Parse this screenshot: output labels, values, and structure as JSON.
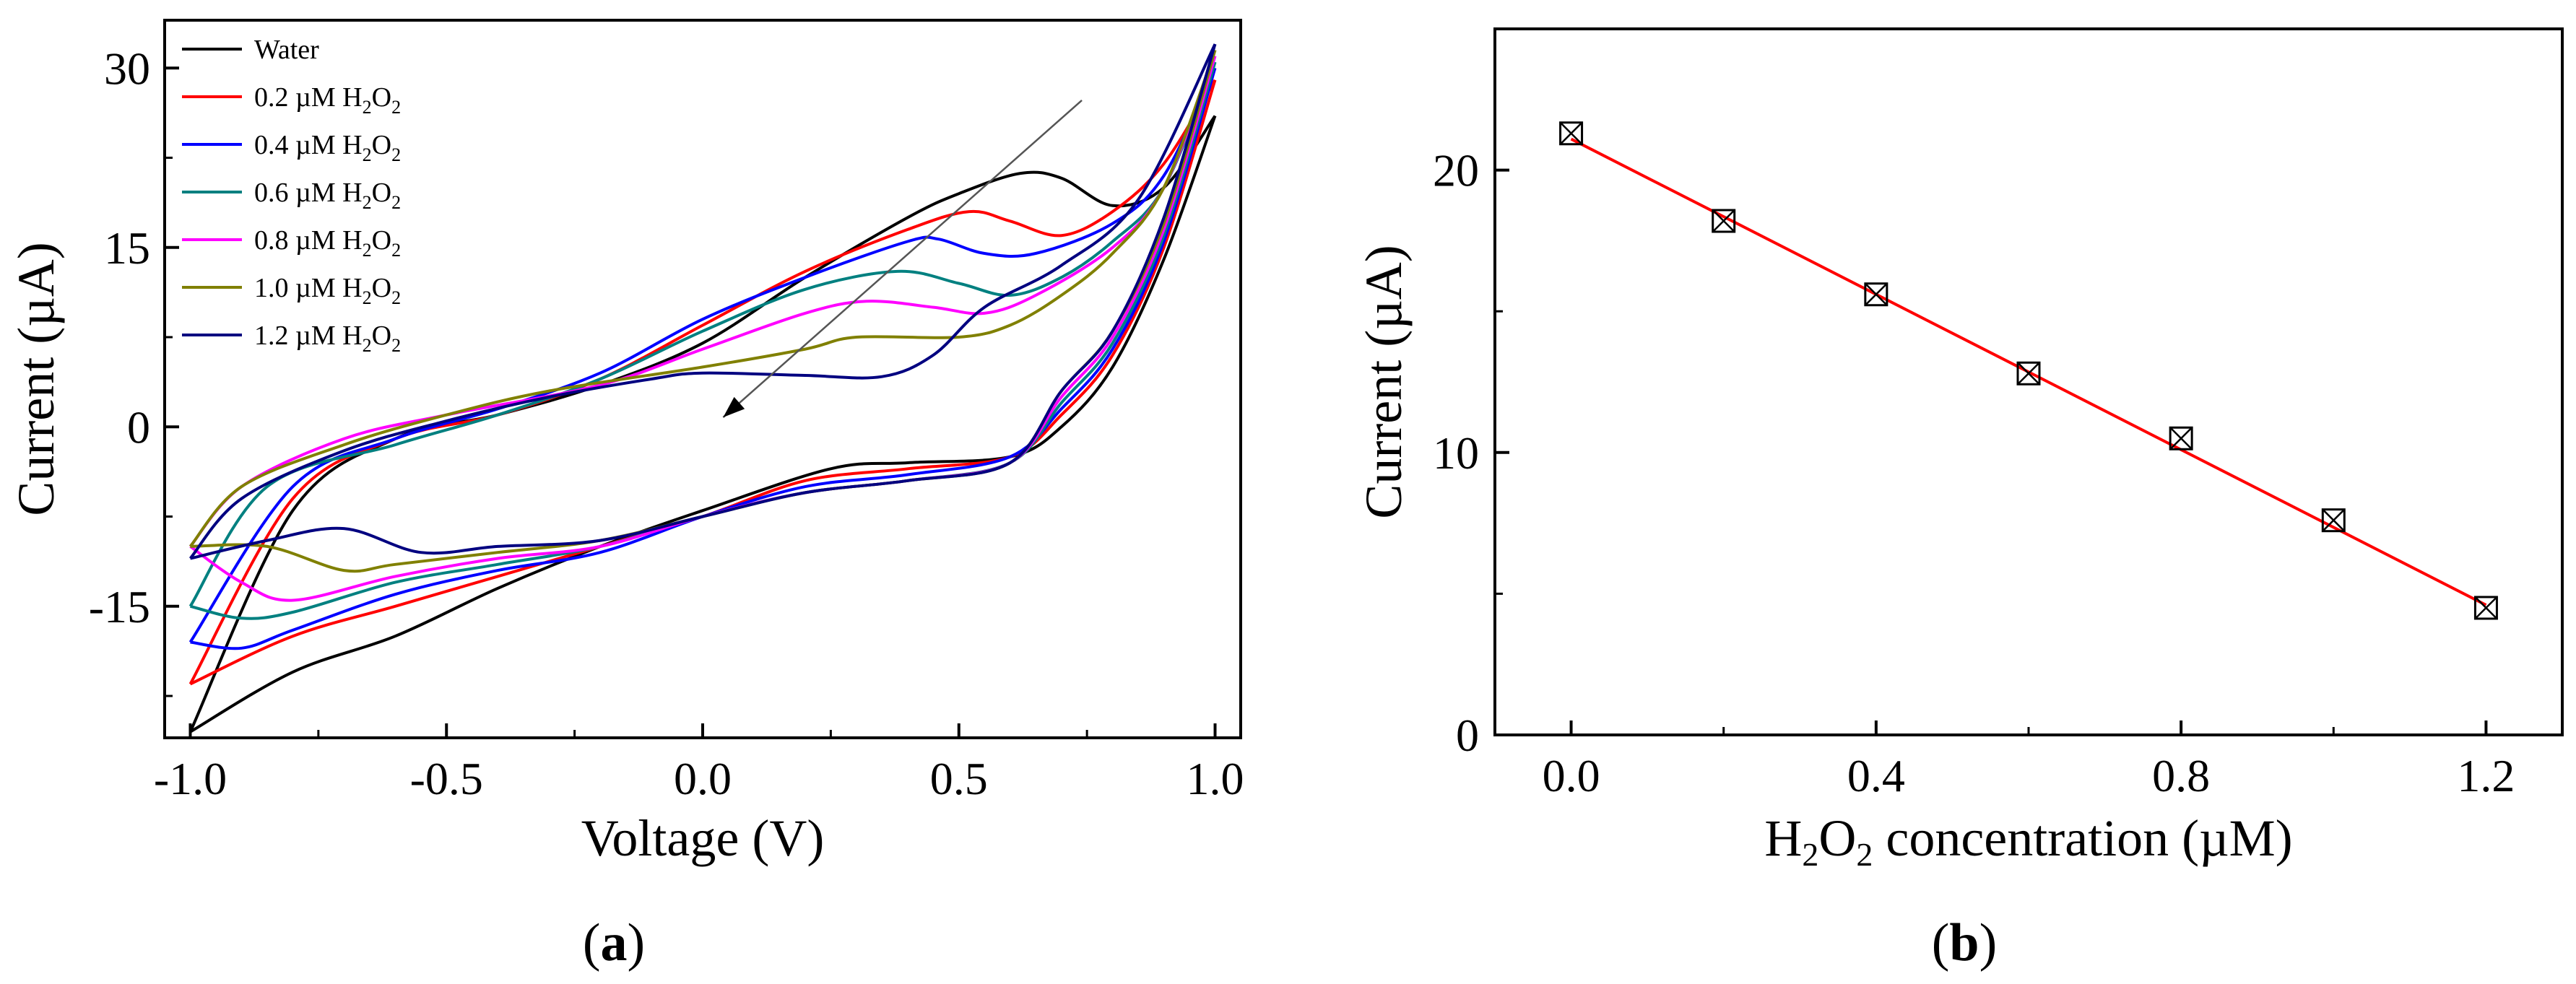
{
  "panels": [
    {
      "label_open": "(",
      "label": "a",
      "label_close": ")"
    },
    {
      "label_open": "(",
      "label": "b",
      "label_close": ")"
    }
  ],
  "chart_data": [
    {
      "type": "line",
      "title": "",
      "xlabel": "Voltage (V)",
      "ylabel": "Current (µA)",
      "xlim": [
        -1.05,
        1.05
      ],
      "ylim": [
        -26,
        34
      ],
      "xticks": [
        -1.0,
        -0.5,
        0.0,
        0.5,
        1.0
      ],
      "xtick_labels": [
        "-1.0",
        "-0.5",
        "0.0",
        "0.5",
        "1.0"
      ],
      "yticks": [
        -15,
        0,
        15,
        30
      ],
      "ytick_labels": [
        "-15",
        "0",
        "15",
        "30"
      ],
      "legend_position": "top-left",
      "arrow": {
        "from": [
          0.74,
          27.3
        ],
        "to": [
          0.04,
          0.8
        ]
      },
      "series": [
        {
          "name": "Water",
          "name_parts": {
            "text": "Water"
          },
          "color": "#000000",
          "forward": [
            [
              -1.0,
              -25.5
            ],
            [
              -0.8,
              -7
            ],
            [
              -0.6,
              -1
            ],
            [
              -0.4,
              1
            ],
            [
              -0.2,
              3.5
            ],
            [
              0.0,
              7
            ],
            [
              0.2,
              12.5
            ],
            [
              0.4,
              17.5
            ],
            [
              0.5,
              19.5
            ],
            [
              0.62,
              21.2
            ],
            [
              0.7,
              20.8
            ],
            [
              0.8,
              18.5
            ],
            [
              0.9,
              20
            ],
            [
              1.0,
              26
            ]
          ],
          "reverse": [
            [
              1.0,
              26
            ],
            [
              0.9,
              14
            ],
            [
              0.8,
              5
            ],
            [
              0.7,
              0
            ],
            [
              0.6,
              -2.5
            ],
            [
              0.4,
              -3
            ],
            [
              0.25,
              -3.5
            ],
            [
              0.0,
              -7
            ],
            [
              -0.2,
              -10
            ],
            [
              -0.4,
              -13.5
            ],
            [
              -0.6,
              -17.5
            ],
            [
              -0.8,
              -20.5
            ],
            [
              -1.0,
              -25.5
            ]
          ]
        },
        {
          "name": "0.2 µM H2O2",
          "name_parts": {
            "text": "0.2 µM H",
            "sub1": "2",
            "mid": "O",
            "sub2": "2"
          },
          "color": "#ff0000",
          "forward": [
            [
              -1.0,
              -21.5
            ],
            [
              -0.8,
              -6
            ],
            [
              -0.6,
              -1
            ],
            [
              -0.4,
              1
            ],
            [
              -0.2,
              4
            ],
            [
              0.0,
              8.5
            ],
            [
              0.2,
              13
            ],
            [
              0.4,
              16.5
            ],
            [
              0.52,
              18
            ],
            [
              0.6,
              17.2
            ],
            [
              0.7,
              16
            ],
            [
              0.8,
              18
            ],
            [
              0.9,
              22
            ],
            [
              1.0,
              29
            ]
          ],
          "reverse": [
            [
              1.0,
              29
            ],
            [
              0.9,
              15
            ],
            [
              0.8,
              6
            ],
            [
              0.7,
              1
            ],
            [
              0.6,
              -2.5
            ],
            [
              0.4,
              -3.5
            ],
            [
              0.2,
              -4.5
            ],
            [
              0.0,
              -7.5
            ],
            [
              -0.2,
              -10
            ],
            [
              -0.4,
              -12.5
            ],
            [
              -0.6,
              -15
            ],
            [
              -0.8,
              -17.5
            ],
            [
              -1.0,
              -21.5
            ]
          ]
        },
        {
          "name": "0.4 µM H2O2",
          "name_parts": {
            "text": "0.4 µM H",
            "sub1": "2",
            "mid": "O",
            "sub2": "2"
          },
          "color": "#0000ff",
          "forward": [
            [
              -1.0,
              -18
            ],
            [
              -0.8,
              -5
            ],
            [
              -0.6,
              -1
            ],
            [
              -0.4,
              1.5
            ],
            [
              -0.2,
              4.5
            ],
            [
              0.0,
              9
            ],
            [
              0.2,
              12.5
            ],
            [
              0.4,
              15.5
            ],
            [
              0.46,
              15.7
            ],
            [
              0.55,
              14.5
            ],
            [
              0.65,
              14.5
            ],
            [
              0.8,
              17
            ],
            [
              0.9,
              21
            ],
            [
              1.0,
              30
            ]
          ],
          "reverse": [
            [
              1.0,
              30
            ],
            [
              0.9,
              15.5
            ],
            [
              0.8,
              6.5
            ],
            [
              0.7,
              1.5
            ],
            [
              0.6,
              -2.5
            ],
            [
              0.4,
              -4
            ],
            [
              0.2,
              -5
            ],
            [
              0.0,
              -7.5
            ],
            [
              -0.2,
              -10.5
            ],
            [
              -0.4,
              -12
            ],
            [
              -0.6,
              -14
            ],
            [
              -0.8,
              -17
            ],
            [
              -0.9,
              -18.5
            ],
            [
              -1.0,
              -18
            ]
          ]
        },
        {
          "name": "0.6 µM H2O2",
          "name_parts": {
            "text": "0.6 µM H",
            "sub1": "2",
            "mid": "O",
            "sub2": "2"
          },
          "color": "#008080",
          "forward": [
            [
              -1.0,
              -15
            ],
            [
              -0.85,
              -5
            ],
            [
              -0.6,
              -1.5
            ],
            [
              -0.4,
              1
            ],
            [
              -0.2,
              4
            ],
            [
              0.0,
              8
            ],
            [
              0.2,
              11.5
            ],
            [
              0.38,
              13
            ],
            [
              0.5,
              12
            ],
            [
              0.6,
              11
            ],
            [
              0.7,
              12.5
            ],
            [
              0.8,
              15.5
            ],
            [
              0.9,
              20
            ],
            [
              1.0,
              30.5
            ]
          ],
          "reverse": [
            [
              1.0,
              30.5
            ],
            [
              0.9,
              16
            ],
            [
              0.8,
              7
            ],
            [
              0.7,
              2
            ],
            [
              0.6,
              -3
            ],
            [
              0.4,
              -4.5
            ],
            [
              0.2,
              -5.5
            ],
            [
              0.0,
              -7.5
            ],
            [
              -0.2,
              -10
            ],
            [
              -0.4,
              -11.5
            ],
            [
              -0.6,
              -13
            ],
            [
              -0.8,
              -15.5
            ],
            [
              -0.9,
              -16
            ],
            [
              -1.0,
              -15
            ]
          ]
        },
        {
          "name": "0.8 µM H2O2",
          "name_parts": {
            "text": "0.8 µM H",
            "sub1": "2",
            "mid": "O",
            "sub2": "2"
          },
          "color": "#ff00ff",
          "forward": [
            [
              -1.0,
              -10
            ],
            [
              -0.9,
              -5
            ],
            [
              -0.7,
              -1
            ],
            [
              -0.5,
              1
            ],
            [
              -0.2,
              3.5
            ],
            [
              0.0,
              6.5
            ],
            [
              0.2,
              9.5
            ],
            [
              0.32,
              10.5
            ],
            [
              0.45,
              10
            ],
            [
              0.55,
              9.5
            ],
            [
              0.65,
              11
            ],
            [
              0.8,
              15
            ],
            [
              0.9,
              20
            ],
            [
              1.0,
              31
            ]
          ],
          "reverse": [
            [
              1.0,
              31
            ],
            [
              0.9,
              16.5
            ],
            [
              0.8,
              7.5
            ],
            [
              0.7,
              2.5
            ],
            [
              0.6,
              -3
            ],
            [
              0.4,
              -4.5
            ],
            [
              0.2,
              -5.5
            ],
            [
              0.0,
              -7.5
            ],
            [
              -0.2,
              -10
            ],
            [
              -0.4,
              -11
            ],
            [
              -0.6,
              -12.5
            ],
            [
              -0.8,
              -14.5
            ],
            [
              -0.9,
              -13
            ],
            [
              -1.0,
              -10
            ]
          ]
        },
        {
          "name": "1.0 µM H2O2",
          "name_parts": {
            "text": "1.0 µM H",
            "sub1": "2",
            "mid": "O",
            "sub2": "2"
          },
          "color": "#808000",
          "forward": [
            [
              -1.0,
              -10
            ],
            [
              -0.9,
              -5
            ],
            [
              -0.7,
              -1.5
            ],
            [
              -0.5,
              1
            ],
            [
              -0.3,
              3
            ],
            [
              0.0,
              5
            ],
            [
              0.2,
              6.5
            ],
            [
              0.3,
              7.5
            ],
            [
              0.5,
              7.5
            ],
            [
              0.6,
              8.5
            ],
            [
              0.7,
              11
            ],
            [
              0.8,
              14.5
            ],
            [
              0.9,
              20
            ],
            [
              1.0,
              31.5
            ]
          ],
          "reverse": [
            [
              1.0,
              31.5
            ],
            [
              0.9,
              17
            ],
            [
              0.8,
              8
            ],
            [
              0.7,
              3
            ],
            [
              0.6,
              -3
            ],
            [
              0.4,
              -4.5
            ],
            [
              0.2,
              -5.5
            ],
            [
              0.0,
              -7.5
            ],
            [
              -0.2,
              -9.5
            ],
            [
              -0.4,
              -10.5
            ],
            [
              -0.6,
              -11.5
            ],
            [
              -0.7,
              -12
            ],
            [
              -0.85,
              -10
            ],
            [
              -1.0,
              -10
            ]
          ]
        },
        {
          "name": "1.2 µM H2O2",
          "name_parts": {
            "text": "1.2 µM H",
            "sub1": "2",
            "mid": "O",
            "sub2": "2"
          },
          "color": "#000080",
          "forward": [
            [
              -1.0,
              -11
            ],
            [
              -0.9,
              -6
            ],
            [
              -0.7,
              -2
            ],
            [
              -0.5,
              0.5
            ],
            [
              -0.3,
              2.5
            ],
            [
              -0.1,
              4
            ],
            [
              0.0,
              4.5
            ],
            [
              0.2,
              4.3
            ],
            [
              0.35,
              4.2
            ],
            [
              0.45,
              6
            ],
            [
              0.55,
              10
            ],
            [
              0.7,
              13.5
            ],
            [
              0.85,
              19
            ],
            [
              1.0,
              32
            ]
          ],
          "reverse": [
            [
              1.0,
              32
            ],
            [
              0.9,
              17.5
            ],
            [
              0.8,
              8
            ],
            [
              0.7,
              3
            ],
            [
              0.6,
              -3
            ],
            [
              0.4,
              -4.5
            ],
            [
              0.2,
              -5.5
            ],
            [
              0.0,
              -7.5
            ],
            [
              -0.2,
              -9.5
            ],
            [
              -0.4,
              -10
            ],
            [
              -0.55,
              -10.5
            ],
            [
              -0.7,
              -8.5
            ],
            [
              -0.85,
              -9.5
            ],
            [
              -1.0,
              -11
            ]
          ]
        }
      ]
    },
    {
      "type": "scatter",
      "title": "",
      "xlabel": "H2O2 concentration (µM)",
      "xlabel_parts": {
        "text": "H",
        "sub1": "2",
        "mid": "O",
        "sub2": "2",
        "rest": " concentration (µM)"
      },
      "ylabel": "Current (µA)",
      "xlim": [
        -0.1,
        1.3
      ],
      "ylim": [
        0,
        25
      ],
      "xticks": [
        0.0,
        0.4,
        0.8,
        1.2
      ],
      "xtick_labels": [
        "0.0",
        "0.4",
        "0.8",
        "1.2"
      ],
      "yticks": [
        0,
        10,
        20
      ],
      "ytick_labels": [
        "0",
        "10",
        "20"
      ],
      "series": [
        {
          "name": "",
          "marker": "boxed-x",
          "color": "#000000",
          "x": [
            0.0,
            0.2,
            0.4,
            0.6,
            0.8,
            1.0,
            1.2
          ],
          "y": [
            21.3,
            18.2,
            15.6,
            12.8,
            10.5,
            7.6,
            4.5
          ]
        }
      ],
      "fit_line": {
        "color": "#ff0000",
        "x": [
          0.0,
          1.2
        ],
        "y": [
          21.1,
          4.6
        ]
      }
    }
  ]
}
